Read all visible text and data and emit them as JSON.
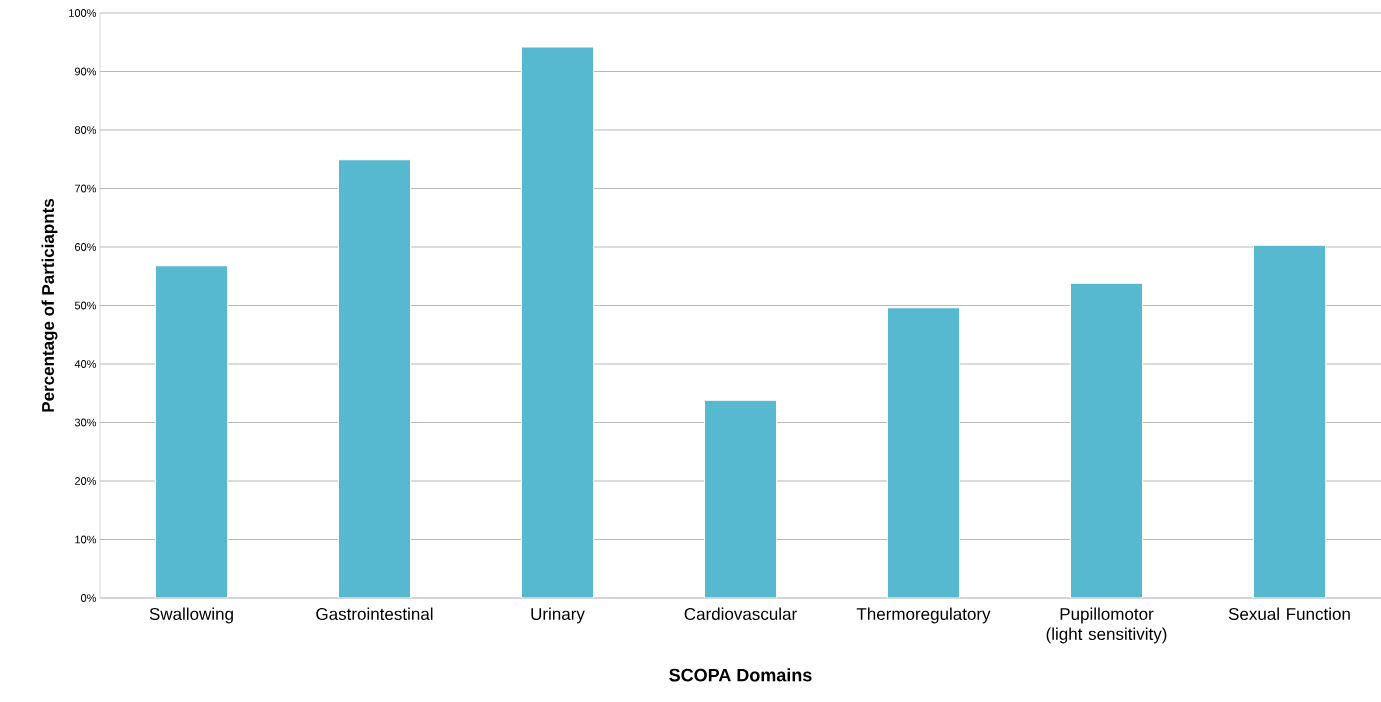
{
  "chart_data": {
    "type": "bar",
    "xlabel": "SCOPA Domains",
    "ylabel": "Percentage of Particiapnts",
    "categories": [
      "Swallowing",
      "Gastrointestinal",
      "Urinary",
      "Cardiovascular",
      "Thermoregulatory",
      "Pupillomotor (light sensitivity)",
      "Sexual Function"
    ],
    "values": [
      56.8,
      74.9,
      94.2,
      33.8,
      49.6,
      53.8,
      60.3
    ],
    "color": "#57b9d0",
    "ylim": [
      0,
      100
    ],
    "yticks": [
      {
        "value": 0,
        "label": "0%"
      },
      {
        "value": 10,
        "label": "10%"
      },
      {
        "value": 20,
        "label": "20%"
      },
      {
        "value": 30,
        "label": "30%"
      },
      {
        "value": 40,
        "label": "40%"
      },
      {
        "value": 50,
        "label": "50%"
      },
      {
        "value": 60,
        "label": "60%"
      },
      {
        "value": 70,
        "label": "70%"
      },
      {
        "value": 80,
        "label": "80%"
      },
      {
        "value": 90,
        "label": "90%"
      },
      {
        "value": 100,
        "label": "100%"
      }
    ],
    "grid": "y"
  }
}
